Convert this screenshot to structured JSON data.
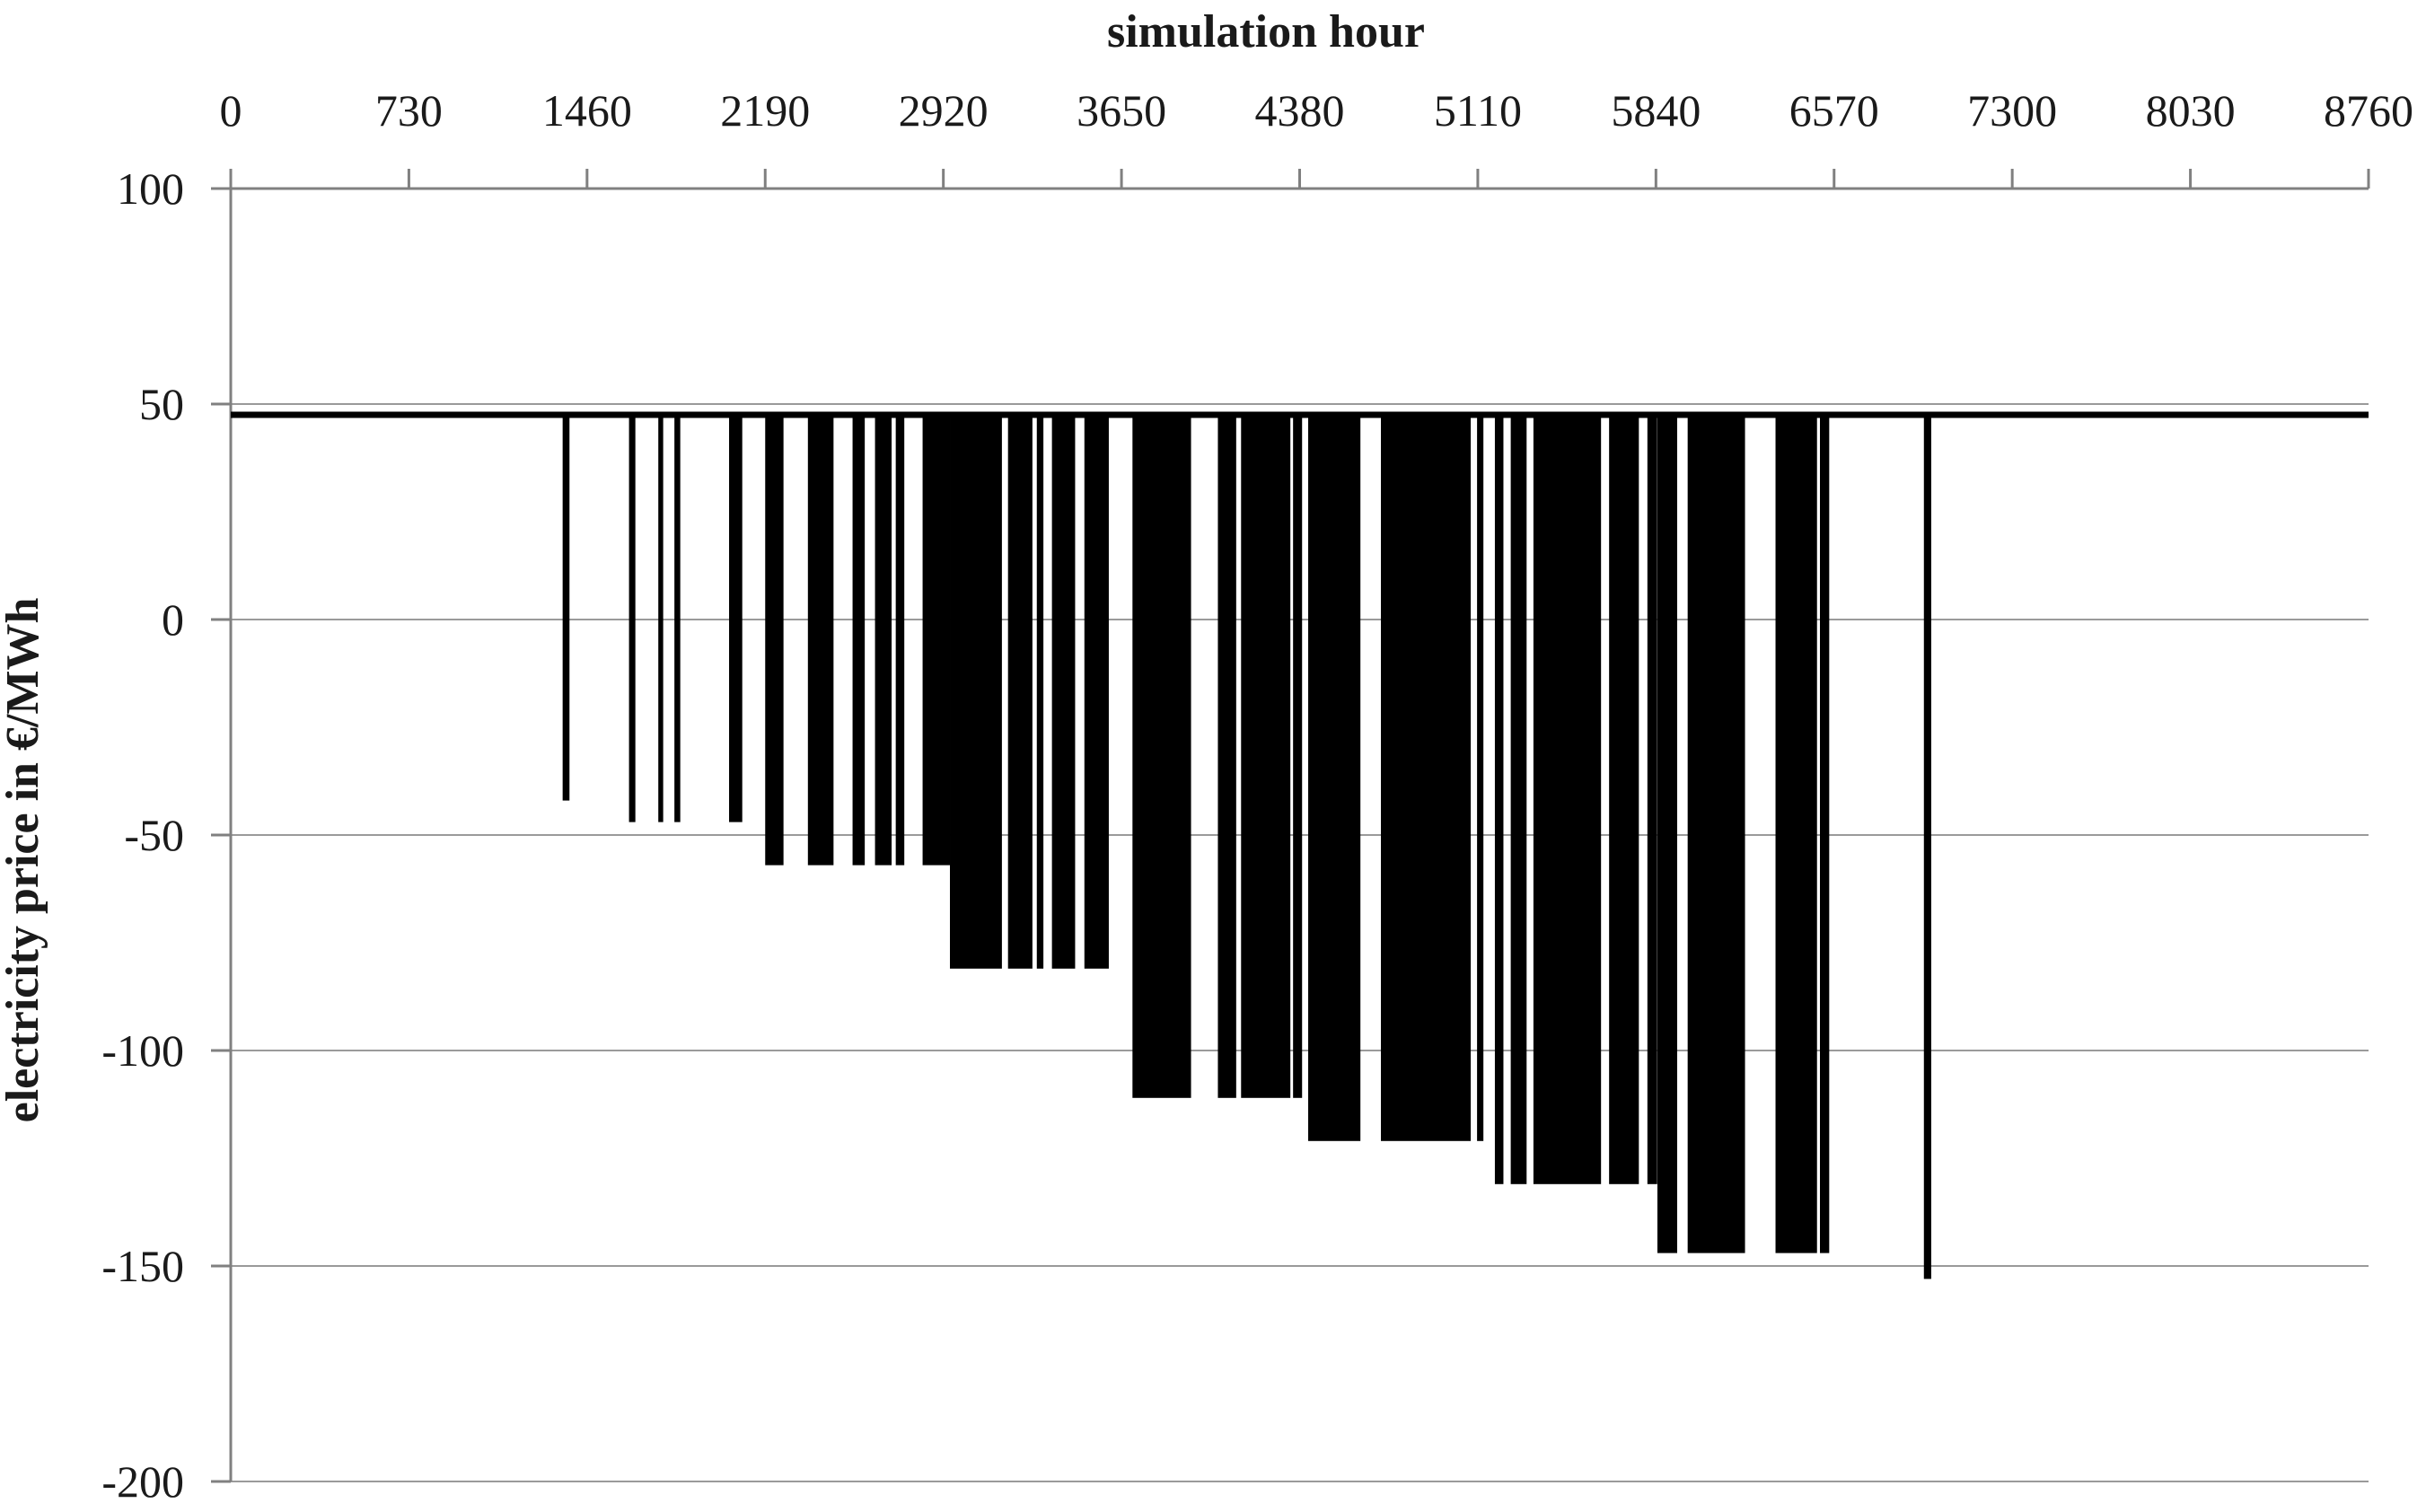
{
  "chart_data": {
    "type": "bar",
    "title": "",
    "xlabel": "simulation hour",
    "ylabel": "electricity price in €/MWh",
    "xlim": [
      0,
      8760
    ],
    "ylim": [
      -200,
      100
    ],
    "x_ticks": [
      0,
      730,
      1460,
      2190,
      2920,
      3650,
      4380,
      5110,
      5840,
      6570,
      7300,
      8030,
      8760
    ],
    "y_ticks": [
      100,
      50,
      0,
      -50,
      -100,
      -150,
      -200
    ],
    "grid": "horizontal-only",
    "legend": "none",
    "baseline_price_eur_per_mwh": 47.5,
    "series_description": "hourly electricity price; flat at baseline except negative-price spike periods",
    "negative_price_segments": [
      {
        "start_hour": 1360,
        "end_hour": 1388,
        "price": -42
      },
      {
        "start_hour": 1632,
        "end_hour": 1658,
        "price": -47
      },
      {
        "start_hour": 1752,
        "end_hour": 1772,
        "price": -47
      },
      {
        "start_hour": 1818,
        "end_hour": 1842,
        "price": -47
      },
      {
        "start_hour": 2042,
        "end_hour": 2096,
        "price": -47
      },
      {
        "start_hour": 2190,
        "end_hour": 2265,
        "price": -57
      },
      {
        "start_hour": 2365,
        "end_hour": 2470,
        "price": -57
      },
      {
        "start_hour": 2548,
        "end_hour": 2598,
        "price": -57
      },
      {
        "start_hour": 2640,
        "end_hour": 2708,
        "price": -57
      },
      {
        "start_hour": 2725,
        "end_hour": 2760,
        "price": -57
      },
      {
        "start_hour": 2835,
        "end_hour": 2947,
        "price": -57
      },
      {
        "start_hour": 2947,
        "end_hour": 3160,
        "price": -81
      },
      {
        "start_hour": 3185,
        "end_hour": 3285,
        "price": -81
      },
      {
        "start_hour": 3303,
        "end_hour": 3330,
        "price": -81
      },
      {
        "start_hour": 3365,
        "end_hour": 3460,
        "price": -81
      },
      {
        "start_hour": 3498,
        "end_hour": 3598,
        "price": -81
      },
      {
        "start_hour": 3695,
        "end_hour": 3935,
        "price": -111
      },
      {
        "start_hour": 4045,
        "end_hour": 4120,
        "price": -111
      },
      {
        "start_hour": 4140,
        "end_hour": 4342,
        "price": -111
      },
      {
        "start_hour": 4353,
        "end_hour": 4390,
        "price": -111
      },
      {
        "start_hour": 4415,
        "end_hour": 4629,
        "price": -121
      },
      {
        "start_hour": 4713,
        "end_hour": 5081,
        "price": -121
      },
      {
        "start_hour": 5107,
        "end_hour": 5133,
        "price": -121
      },
      {
        "start_hour": 5180,
        "end_hour": 5215,
        "price": -131
      },
      {
        "start_hour": 5245,
        "end_hour": 5310,
        "price": -131
      },
      {
        "start_hour": 5338,
        "end_hour": 5615,
        "price": -131
      },
      {
        "start_hour": 5648,
        "end_hour": 5770,
        "price": -131
      },
      {
        "start_hour": 5805,
        "end_hour": 5845,
        "price": -131
      },
      {
        "start_hour": 5846,
        "end_hour": 5927,
        "price": -147
      },
      {
        "start_hour": 5970,
        "end_hour": 6205,
        "price": -147
      },
      {
        "start_hour": 6330,
        "end_hour": 6500,
        "price": -147
      },
      {
        "start_hour": 6512,
        "end_hour": 6550,
        "price": -147
      },
      {
        "start_hour": 6938,
        "end_hour": 6968,
        "price": -153
      }
    ],
    "colors": {
      "bars": "#000000",
      "baseline_line": "#000000",
      "gridline": "#9a9a9a",
      "axis": "#808080",
      "text": "#1a1a1a",
      "background": "#ffffff"
    },
    "layout": {
      "plot_left": 257,
      "plot_right": 2638,
      "plot_top": 210,
      "plot_bottom": 1650,
      "title_x": 1410,
      "title_y": 52,
      "x_tick_label_y": 140,
      "y_label_x": 42,
      "y_label_y": 958,
      "baseline_stroke_width": 7,
      "tick_length": 22
    }
  }
}
